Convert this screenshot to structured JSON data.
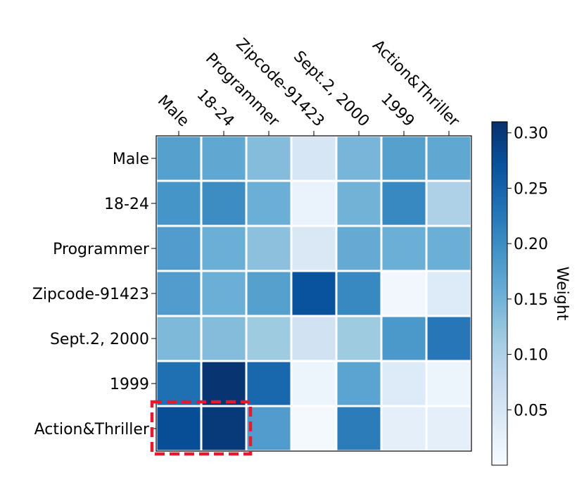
{
  "chart_data": {
    "type": "heatmap",
    "title": "",
    "columns": [
      "Male",
      "18-24",
      "Programmer",
      "Zipcode-91423",
      "Sept.2, 2000",
      "1999",
      "Action&Thriller"
    ],
    "rows": [
      "Male",
      "18-24",
      "Programmer",
      "Zipcode-91423",
      "Sept.2, 2000",
      "1999",
      "Action&Thriller"
    ],
    "values": [
      [
        0.175,
        0.165,
        0.135,
        0.05,
        0.145,
        0.175,
        0.165
      ],
      [
        0.19,
        0.2,
        0.155,
        0.02,
        0.15,
        0.205,
        0.1
      ],
      [
        0.18,
        0.155,
        0.13,
        0.045,
        0.16,
        0.155,
        0.155
      ],
      [
        0.18,
        0.155,
        0.175,
        0.27,
        0.205,
        0.01,
        0.04
      ],
      [
        0.14,
        0.135,
        0.115,
        0.06,
        0.115,
        0.185,
        0.225
      ],
      [
        0.235,
        0.305,
        0.245,
        0.015,
        0.17,
        0.04,
        0.015
      ],
      [
        0.275,
        0.3,
        0.18,
        0.005,
        0.22,
        0.03,
        0.03
      ]
    ],
    "vmin": 0.0,
    "vmax": 0.31,
    "colormap": "Blues",
    "colorbar": {
      "label": "Weight",
      "ticks": [
        0.05,
        0.1,
        0.15,
        0.2,
        0.25,
        0.3
      ],
      "tick_labels": [
        "0.05",
        "0.10",
        "0.15",
        "0.20",
        "0.25",
        "0.30"
      ]
    },
    "highlight": {
      "rows": [
        6
      ],
      "columns": [
        0,
        1
      ],
      "style": "dashed",
      "color": "#e8192c"
    }
  }
}
